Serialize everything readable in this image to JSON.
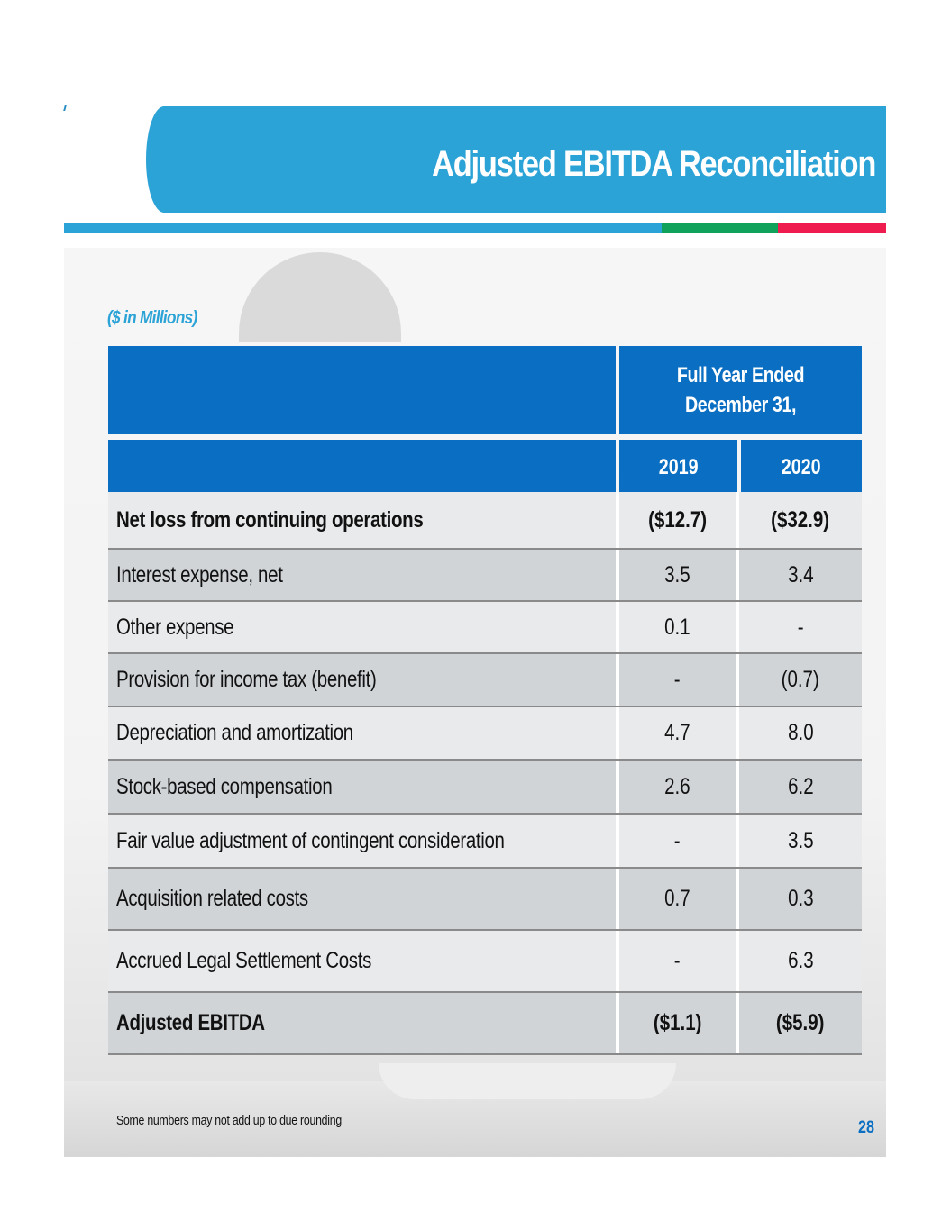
{
  "header": {
    "title": "Adjusted EBITDA Reconciliation",
    "colors": {
      "banner": "#2ca3d6",
      "stripe_blue": "#2ca3d6",
      "stripe_green": "#10a25a",
      "stripe_red": "#ee1c4f"
    }
  },
  "units_label": "($ in Millions)",
  "table": {
    "period_header_line1": "Full Year Ended",
    "period_header_line2": "December 31,",
    "columns": [
      "2019",
      "2020"
    ],
    "header_color": "#0a6fc2",
    "rows": [
      {
        "label": "Net loss from continuing operations",
        "v2019": "($12.7)",
        "v2020": "($32.9)",
        "bold": true
      },
      {
        "label": "Interest expense, net",
        "v2019": "3.5",
        "v2020": "3.4",
        "bold": false
      },
      {
        "label": "Other expense",
        "v2019": "0.1",
        "v2020": "-",
        "bold": false
      },
      {
        "label": "Provision for income tax (benefit)",
        "v2019": "-",
        "v2020": "(0.7)",
        "bold": false
      },
      {
        "label": "Depreciation and amortization",
        "v2019": "4.7",
        "v2020": "8.0",
        "bold": false
      },
      {
        "label": "Stock-based compensation",
        "v2019": "2.6",
        "v2020": "6.2",
        "bold": false
      },
      {
        "label": "Fair value adjustment of contingent consideration",
        "v2019": "-",
        "v2020": "3.5",
        "bold": false
      },
      {
        "label": "Acquisition related costs",
        "v2019": "0.7",
        "v2020": "0.3",
        "bold": false
      },
      {
        "label": "Accrued Legal Settlement Costs",
        "v2019": "-",
        "v2020": "6.3",
        "bold": false
      },
      {
        "label": "Adjusted EBITDA",
        "v2019": "($1.1)",
        "v2020": "($5.9)",
        "bold": true
      }
    ]
  },
  "footnote": "Some numbers may not add up to due rounding",
  "page_number": "28"
}
